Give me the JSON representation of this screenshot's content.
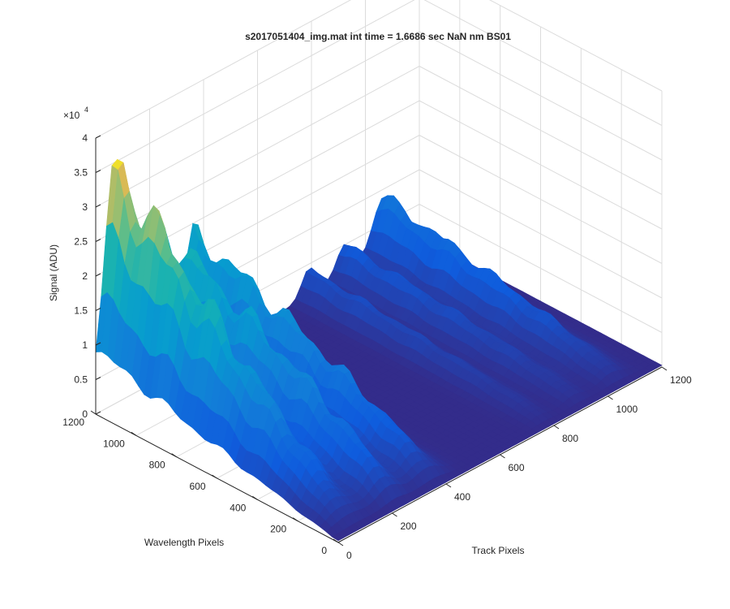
{
  "chart_data": {
    "type": "surface",
    "title": "s2017051404_img.mat int time = 1.6686 sec  NaN nm BS01",
    "xlabel": "Track Pixels",
    "ylabel": "Wavelength Pixels",
    "zlabel": "Signal (ADU)",
    "xlim": [
      0,
      1200
    ],
    "ylim": [
      0,
      1200
    ],
    "zlim": [
      0,
      40000
    ],
    "x_ticks": [
      "0",
      "200",
      "400",
      "600",
      "800",
      "1000",
      "1200"
    ],
    "y_ticks": [
      "0",
      "200",
      "400",
      "600",
      "800",
      "1000",
      "1200"
    ],
    "z_ticks": [
      "0",
      "0.5",
      "1",
      "1.5",
      "2",
      "2.5",
      "3",
      "3.5",
      "4"
    ],
    "z_exponent": "×10",
    "z_exponent_power": "4",
    "colormap": "parula",
    "grid": true,
    "ridges": [
      {
        "track_center": 80,
        "track_width": 70,
        "peak_signal": 34000,
        "wavelength_falloff": 1.0
      },
      {
        "track_center": 230,
        "track_width": 55,
        "peak_signal": 22000,
        "wavelength_falloff": 0.6
      },
      {
        "track_center": 370,
        "track_width": 60,
        "peak_signal": 18000,
        "wavelength_falloff": 0.6
      },
      {
        "track_center": 790,
        "track_width": 40,
        "peak_signal": 4000,
        "wavelength_falloff": 0.5
      },
      {
        "track_center": 920,
        "track_width": 45,
        "peak_signal": 5000,
        "wavelength_falloff": 0.5
      },
      {
        "track_center": 1060,
        "track_width": 55,
        "peak_signal": 9000,
        "wavelength_falloff": 0.6
      }
    ]
  }
}
